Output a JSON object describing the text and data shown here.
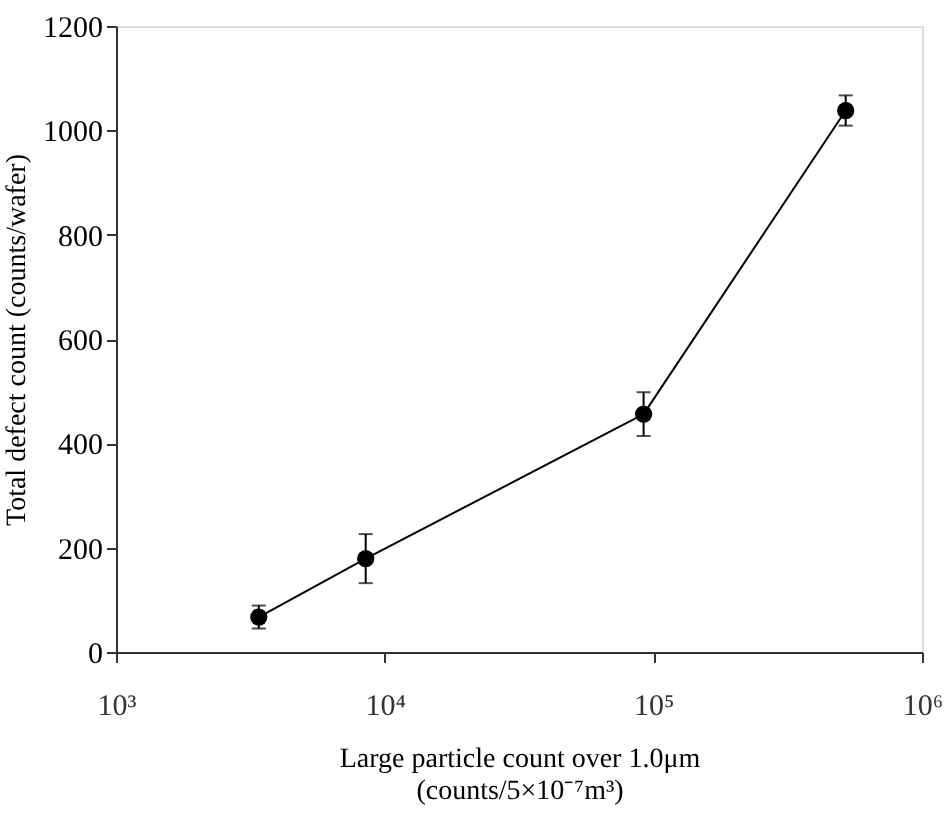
{
  "chart_data": {
    "type": "line",
    "xlabel": "Large particle count over 1.0μm\n(counts/5×10⁻⁷m³)",
    "ylabel": "Total defect count (counts/wafer)",
    "x": [
      3400,
      8500,
      92000,
      520000
    ],
    "series": [
      {
        "color": "#000000",
        "values": [
          67,
          179,
          456,
          1038
        ],
        "errors": [
          22,
          47,
          42,
          29
        ]
      }
    ],
    "log": "x",
    "xlim": [
      1000,
      1000000
    ],
    "xticks": [
      {
        "value": 1000,
        "label": "10³"
      },
      {
        "value": 10000,
        "label": "10⁴"
      },
      {
        "value": 100000,
        "label": "10⁵"
      },
      {
        "value": 1000000,
        "label": "10⁶"
      }
    ],
    "ylim": [
      0,
      1200
    ],
    "yticks": [
      0,
      200,
      400,
      600,
      800,
      1000,
      1200
    ],
    "grid": false,
    "marker": "circle",
    "line_style": "solid"
  }
}
